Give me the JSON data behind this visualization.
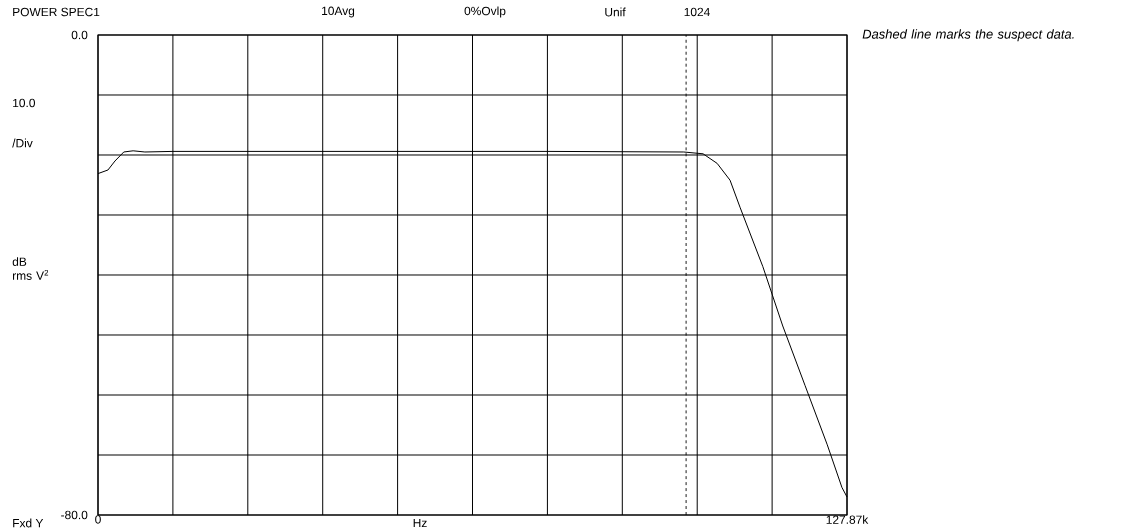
{
  "chart_data": {
    "type": "line",
    "title": "POWER SPEC1",
    "xlabel": "Hz",
    "ylabel": "dB rms V$^{2}$",
    "annotations": [
      "10Avg",
      "0%Ovlp",
      "Unif",
      "1024",
      "10.0",
      "/Div",
      "Fxd Y",
      "Dashed line marks the suspect data."
    ],
    "x": [
      0,
      1700,
      2900,
      4400,
      6000,
      8000,
      12800,
      25600,
      51200,
      76700,
      100000,
      103300,
      105700,
      107900,
      109600,
      113500,
      116900,
      120700,
      124500,
      127000,
      127870
    ],
    "series": [
      {
        "color": "#000000",
        "values": [
          -23.1,
          -22.5,
          -21,
          -19.5,
          -19.3,
          -19.5,
          -19.4,
          -19.4,
          -19.4,
          -19.4,
          -19.5,
          -19.8,
          -21.4,
          -24.2,
          -28.7,
          -38.6,
          -48.5,
          -58.4,
          -68.3,
          -75.4,
          -77.0
        ]
      }
    ],
    "xlim": [
      0,
      127870
    ],
    "ylim": [
      -80,
      0
    ],
    "xticks": [
      0,
      {
        "value": 12787,
        "label": null
      },
      {
        "value": 25574,
        "label": null
      },
      {
        "value": 38361,
        "label": null
      },
      {
        "value": 51148,
        "label": null
      },
      {
        "value": 63935,
        "label": null
      },
      {
        "value": 76722,
        "label": null
      },
      {
        "value": 89509,
        "label": null
      },
      {
        "value": 102296,
        "label": null
      },
      {
        "value": 115083,
        "label": null
      },
      {
        "value": 127870,
        "label": "127.87k"
      }
    ],
    "yticks": [
      {
        "value": 0,
        "label": "0.0"
      },
      {
        "value": -10,
        "label": null
      },
      {
        "value": -20,
        "label": null
      },
      {
        "value": -30,
        "label": null
      },
      {
        "value": -40,
        "label": null
      },
      {
        "value": -50,
        "label": null
      },
      {
        "value": -60,
        "label": null
      },
      {
        "value": -70,
        "label": null
      },
      {
        "value": -80,
        "label": "-80.0"
      }
    ],
    "grid": true,
    "line_style": "solid",
    "ref_lines": [
      {
        "axis": "x",
        "value": 100400,
        "color": "#000000",
        "line_style": "dashed"
      }
    ]
  }
}
